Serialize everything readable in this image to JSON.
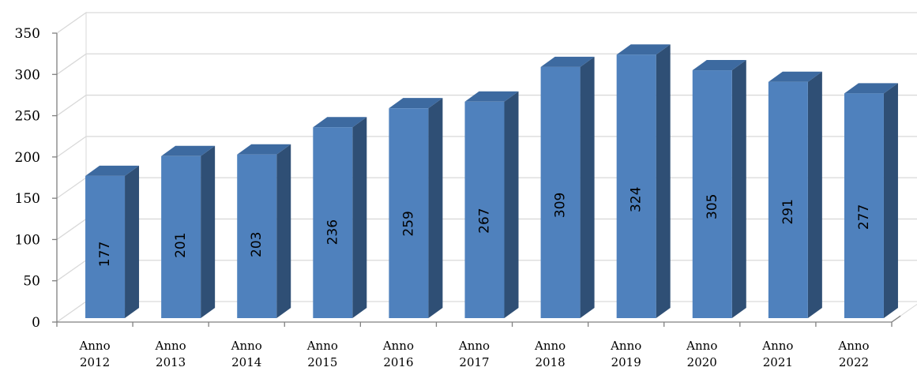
{
  "chart_data": {
    "type": "bar",
    "title": "",
    "xlabel": "",
    "ylabel": "",
    "categories": [
      "Anno 2012",
      "Anno 2013",
      "Anno 2014",
      "Anno 2015",
      "Anno 2016",
      "Anno 2017",
      "Anno 2018",
      "Anno 2019",
      "Anno 2020",
      "Anno 2021",
      "Anno 2022"
    ],
    "values": [
      177,
      201,
      203,
      236,
      259,
      267,
      309,
      324,
      305,
      291,
      277
    ],
    "ylim": [
      0,
      350
    ],
    "yticks": [
      0,
      50,
      100,
      150,
      200,
      250,
      300,
      350
    ],
    "grid": true,
    "legend": "none",
    "style": "3d-column",
    "colors": {
      "bar_front": "#4f81bd",
      "bar_side": "#2f4f75",
      "bar_top": "#3d6aa0",
      "gridline": "#d9d9d9",
      "axis": "#808080"
    }
  }
}
